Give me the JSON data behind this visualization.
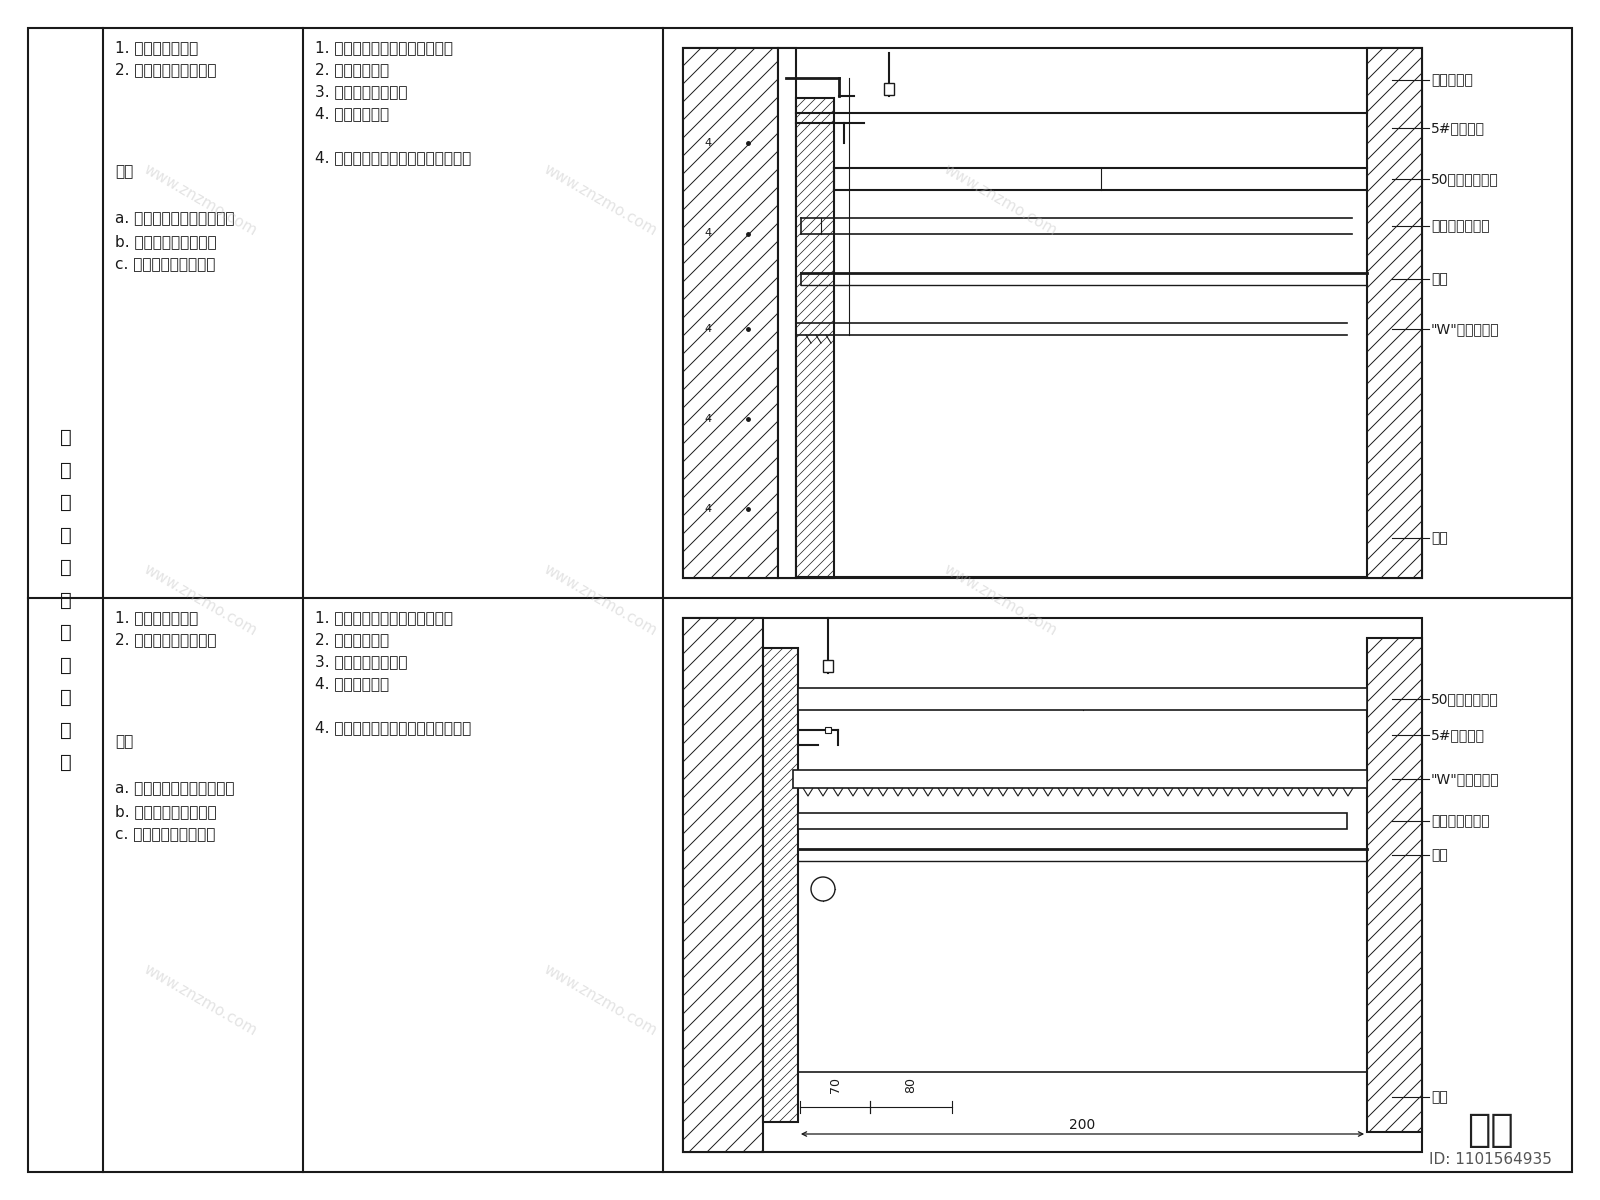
{
  "bg_color": "#ffffff",
  "line_color": "#1a1a1a",
  "title_text": "墙\n面\n石\n材\n与\n顶\n面\n铝\n板\n相\n接",
  "col2_row1_lines": [
    "1. 石材与顶面铝板",
    "2. 石材背景与顶面铝板"
  ],
  "col2_notes": "注：\n\na. 钢架基层与干挂件的配合\nb. 对不同材质接缝完善\nc. 对不同材质收口美观",
  "col3_row1_lines": [
    "1. 顶面造型放线，墙面造型放线",
    "2. 墙面钢架安装",
    "3. 顶面轻钢龙骨安装",
    "4. 墙面石材安装",
    "",
    "4. 顶面铝板安装，并用收边龙骨收边"
  ],
  "labels_row1": [
    "石材干挂件",
    "5#镀锌角钢",
    "50系列轻钢龙骨",
    "铝板专用副龙骨",
    "铝板",
    "\"W\"型收边龙骨",
    "石材"
  ],
  "labels_row2": [
    "50系列轻钢龙骨",
    "5#镀锌角钢",
    "\"W\"型收边龙骨",
    "铝板专用副龙骨",
    "铝板",
    "石材"
  ],
  "dim_70": "70",
  "dim_80": "80",
  "dim_200": "200",
  "watermark": "www.znzmo.com",
  "footer1": "知末",
  "footer2": "ID: 1101564935"
}
